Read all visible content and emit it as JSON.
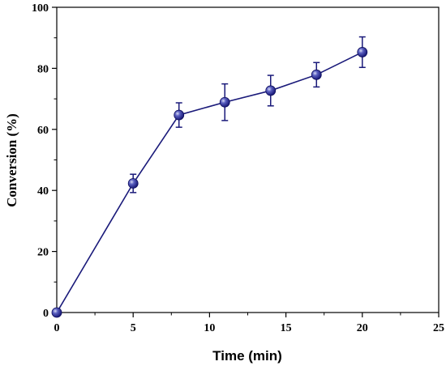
{
  "chart_data": {
    "type": "line",
    "xlabel": "Time (min)",
    "ylabel": "Conversion (%)",
    "xlim": [
      0,
      25
    ],
    "ylim": [
      0,
      100
    ],
    "x_ticks": [
      0,
      5,
      10,
      15,
      20,
      25
    ],
    "y_ticks": [
      0,
      20,
      40,
      60,
      80,
      100
    ],
    "grid": false,
    "series": [
      {
        "x": [
          0,
          5,
          8,
          11,
          14,
          17,
          20
        ],
        "y": [
          0,
          42.3,
          64.7,
          68.9,
          72.7,
          77.9,
          85.3
        ],
        "error": [
          0,
          3.0,
          4.0,
          6.0,
          5.0,
          4.0,
          5.0
        ],
        "color": "#1a1a7a",
        "marker": "circle"
      }
    ]
  }
}
